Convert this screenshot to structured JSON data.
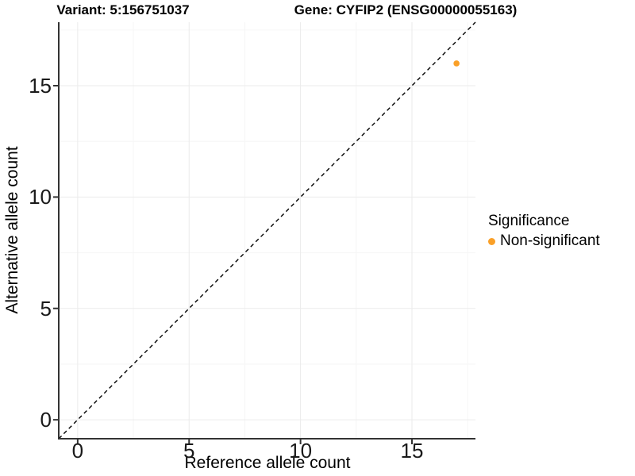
{
  "chart_data": {
    "type": "scatter",
    "title_variant": "Variant: 5:156751037",
    "title_gene": "Gene: CYFIP2 (ENSG00000055163)",
    "xlabel": "Reference allele count",
    "ylabel": "Alternative allele count",
    "xlim": [
      -0.85,
      17.85
    ],
    "ylim": [
      -0.85,
      17.85
    ],
    "x_ticks": [
      0,
      5,
      10,
      15
    ],
    "y_ticks": [
      0,
      5,
      10,
      15
    ],
    "x_minor_ticks": [
      2.5,
      7.5,
      12.5,
      17.5
    ],
    "y_minor_ticks": [
      2.5,
      7.5,
      12.5,
      17.5
    ],
    "grid": "major+minor",
    "identity_line": {
      "style": "dashed",
      "from": [
        -0.85,
        -0.85
      ],
      "to": [
        17.85,
        17.85
      ],
      "color": "#000000"
    },
    "series": [
      {
        "name": "Non-significant",
        "color": "#FAA028",
        "points": [
          {
            "x": 17,
            "y": 16
          }
        ]
      }
    ],
    "legend": {
      "title": "Significance",
      "position": "right",
      "items": [
        {
          "label": "Non-significant",
          "color": "#FAA028"
        }
      ]
    }
  },
  "colors": {
    "background": "#FFFFFF",
    "grid_major": "#EBEBEB",
    "grid_minor": "#F6F6F6",
    "axis": "#333333",
    "tick_label": "#1A1A1A"
  }
}
